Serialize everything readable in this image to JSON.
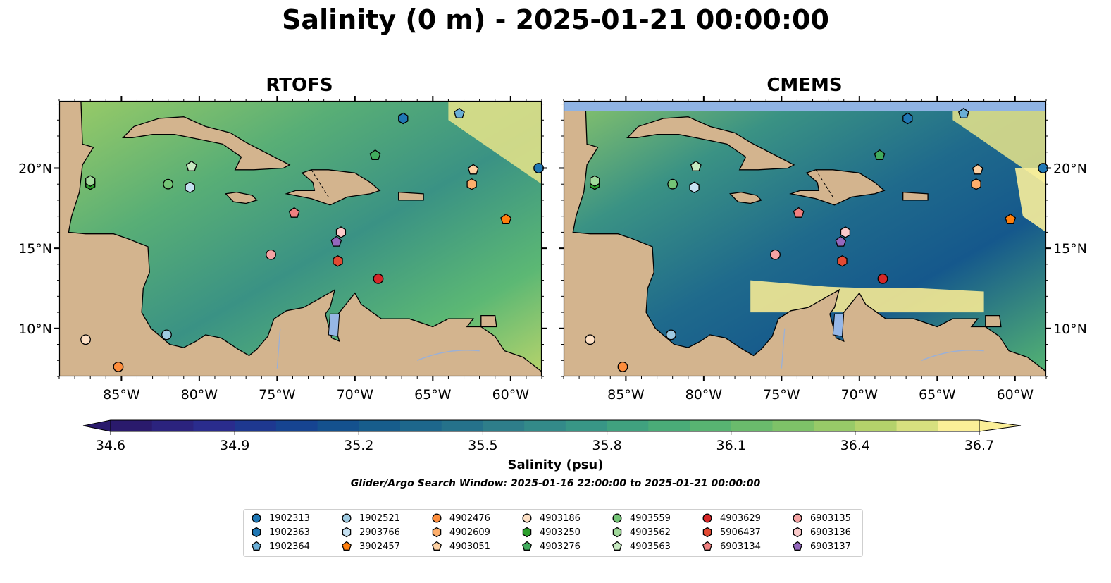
{
  "title": "Salinity (0 m) - 2025-01-21 00:00:00",
  "panels": [
    {
      "name": "RTOFS"
    },
    {
      "name": "CMEMS"
    }
  ],
  "axes": {
    "lon_ticks": [
      "85°W",
      "80°W",
      "75°W",
      "70°W",
      "65°W",
      "60°W"
    ],
    "lon_values": [
      -85,
      -80,
      -75,
      -70,
      -65,
      -60
    ],
    "lat_ticks": [
      "10°N",
      "15°N",
      "20°N"
    ],
    "lat_values": [
      10,
      15,
      20
    ],
    "lon_range": [
      -89,
      -58
    ],
    "lat_range": [
      7,
      24.2
    ]
  },
  "colorbar": {
    "label": "Salinity (psu)",
    "ticks": [
      "34.6",
      "34.9",
      "35.2",
      "35.5",
      "35.8",
      "36.1",
      "36.4",
      "36.7"
    ],
    "range": [
      34.6,
      36.7
    ],
    "extend": "both",
    "colormap_stops": [
      "#2a1a6c",
      "#2c2a8c",
      "#173f92",
      "#13578c",
      "#1f6a8c",
      "#2f7f8a",
      "#379587",
      "#46aa7a",
      "#60b86e",
      "#86c466",
      "#b9d46b",
      "#fbef98"
    ]
  },
  "search_window": "Glider/Argo Search Window: 2025-01-16 22:00:00 to 2025-01-21 00:00:00",
  "colors": {
    "land": "#d3b48e",
    "deep_low_salinity": "#2a1a6c",
    "lake": "#96b7e6",
    "river": "#9bb0d6",
    "cmems_no_data_band": "#8fb3e3"
  },
  "legend": [
    {
      "id": "1902313",
      "marker": "circle",
      "color": "#1f77b4"
    },
    {
      "id": "1902363",
      "marker": "hexagon",
      "color": "#1f77b4"
    },
    {
      "id": "1902364",
      "marker": "pentagon",
      "color": "#6aaed6"
    },
    {
      "id": "1902521",
      "marker": "circle",
      "color": "#9ecae1"
    },
    {
      "id": "2903766",
      "marker": "hexagon",
      "color": "#c6e1f2"
    },
    {
      "id": "3902457",
      "marker": "pentagon",
      "color": "#ff7f0e"
    },
    {
      "id": "4902476",
      "marker": "circle",
      "color": "#fd8d3c"
    },
    {
      "id": "4902609",
      "marker": "hexagon",
      "color": "#fdae6b"
    },
    {
      "id": "4903051",
      "marker": "pentagon",
      "color": "#fdd0a2"
    },
    {
      "id": "4903186",
      "marker": "circle",
      "color": "#fde0c5"
    },
    {
      "id": "4903250",
      "marker": "hexagon",
      "color": "#2ca02c"
    },
    {
      "id": "4903276",
      "marker": "pentagon",
      "color": "#41ab5d"
    },
    {
      "id": "4903559",
      "marker": "circle",
      "color": "#74c476"
    },
    {
      "id": "4903562",
      "marker": "hexagon",
      "color": "#a1d99b"
    },
    {
      "id": "4903563",
      "marker": "pentagon",
      "color": "#c7e9c0"
    },
    {
      "id": "4903629",
      "marker": "circle",
      "color": "#d62728"
    },
    {
      "id": "5906437",
      "marker": "hexagon",
      "color": "#e34a33"
    },
    {
      "id": "6903134",
      "marker": "pentagon",
      "color": "#f08080"
    },
    {
      "id": "6903135",
      "marker": "circle",
      "color": "#f4a3a3"
    },
    {
      "id": "6903136",
      "marker": "hexagon",
      "color": "#fbcaca"
    },
    {
      "id": "6903137",
      "marker": "pentagon",
      "color": "#9467bd"
    }
  ],
  "float_positions": [
    {
      "id": "1902313",
      "lon": -58.2,
      "lat": 20.0
    },
    {
      "id": "1902363",
      "lon": -66.9,
      "lat": 23.1
    },
    {
      "id": "1902364",
      "lon": -63.3,
      "lat": 23.4
    },
    {
      "id": "1902521",
      "lon": -82.1,
      "lat": 9.6
    },
    {
      "id": "2903766",
      "lon": -80.6,
      "lat": 18.8
    },
    {
      "id": "3902457",
      "lon": -60.3,
      "lat": 16.8
    },
    {
      "id": "4902476",
      "lon": -85.2,
      "lat": 7.6
    },
    {
      "id": "4902609",
      "lon": -62.5,
      "lat": 19.0
    },
    {
      "id": "4903051",
      "lon": -62.4,
      "lat": 19.9
    },
    {
      "id": "4903186",
      "lon": -87.3,
      "lat": 9.3
    },
    {
      "id": "4903250",
      "lon": -87.0,
      "lat": 19.0
    },
    {
      "id": "4903276",
      "lon": -68.7,
      "lat": 20.8
    },
    {
      "id": "4903559",
      "lon": -82.0,
      "lat": 19.0
    },
    {
      "id": "4903562",
      "lon": -87.0,
      "lat": 19.2
    },
    {
      "id": "4903563",
      "lon": -80.5,
      "lat": 20.1
    },
    {
      "id": "4903629",
      "lon": -68.5,
      "lat": 13.1
    },
    {
      "id": "5906437",
      "lon": -71.1,
      "lat": 14.2
    },
    {
      "id": "6903134",
      "lon": -73.9,
      "lat": 17.2
    },
    {
      "id": "6903135",
      "lon": -75.4,
      "lat": 14.6
    },
    {
      "id": "6903136",
      "lon": -70.9,
      "lat": 16.0
    },
    {
      "id": "6903137",
      "lon": -71.2,
      "lat": 15.4
    }
  ]
}
